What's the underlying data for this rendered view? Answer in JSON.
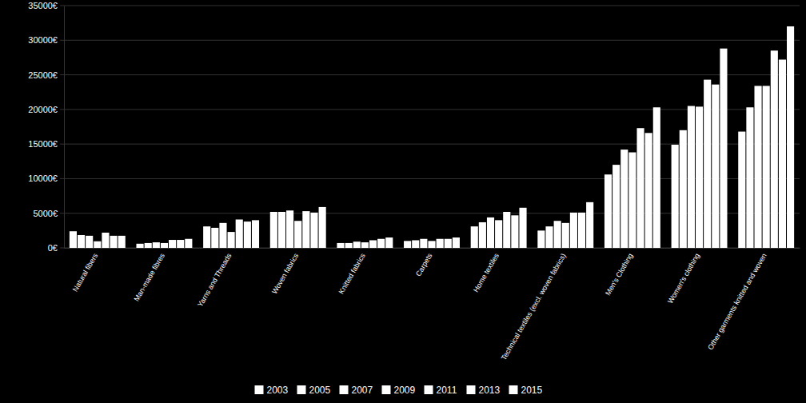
{
  "chart_data": {
    "type": "bar",
    "categories": [
      "Natural fibers",
      "Man-made fibres",
      "Yarns and Threads",
      "Woven fabrics",
      "Knitted fabrics",
      "Carpets",
      "Home textiles",
      "Technical textiles (excl. woven fabrics)",
      "Men's Clothing",
      "Women's clothing",
      "Other garments knitted and woven"
    ],
    "series": [
      {
        "name": "2003",
        "color": "#ffffff",
        "values": [
          2400,
          600,
          3100,
          5200,
          700,
          1000,
          3100,
          2500,
          10600,
          14900,
          16800
        ]
      },
      {
        "name": "2005",
        "color": "#ffffff",
        "values": [
          1850,
          700,
          2900,
          5200,
          700,
          1100,
          3700,
          3100,
          12000,
          17000,
          20300
        ]
      },
      {
        "name": "2007",
        "color": "#ffffff",
        "values": [
          1750,
          800,
          3600,
          5400,
          900,
          1300,
          4400,
          3900,
          14200,
          20500,
          23400
        ]
      },
      {
        "name": "2009",
        "color": "#ffffff",
        "values": [
          950,
          700,
          2300,
          3900,
          800,
          1000,
          4000,
          3600,
          13800,
          20400,
          23400
        ]
      },
      {
        "name": "2011",
        "color": "#ffffff",
        "values": [
          2200,
          1150,
          4100,
          5300,
          1100,
          1300,
          5200,
          5100,
          17300,
          24300,
          28500
        ]
      },
      {
        "name": "2013",
        "color": "#ffffff",
        "values": [
          1750,
          1150,
          3800,
          5100,
          1300,
          1300,
          4700,
          5100,
          16600,
          23600,
          27200
        ]
      },
      {
        "name": "2015",
        "color": "#ffffff",
        "values": [
          1750,
          1300,
          4000,
          5900,
          1500,
          1500,
          5800,
          6600,
          20300,
          28800,
          32000
        ]
      }
    ],
    "ylim": [
      0,
      35000
    ],
    "yticks": [
      {
        "value": 0,
        "label": "0€"
      },
      {
        "value": 5000,
        "label": "5000€"
      },
      {
        "value": 10000,
        "label": "10000€"
      },
      {
        "value": 15000,
        "label": "15000€"
      },
      {
        "value": 20000,
        "label": "20000€"
      },
      {
        "value": 25000,
        "label": "25000€"
      },
      {
        "value": 30000,
        "label": "30000€"
      },
      {
        "value": 35000,
        "label": "35000€"
      }
    ],
    "grid": true,
    "legend": "bottom"
  }
}
